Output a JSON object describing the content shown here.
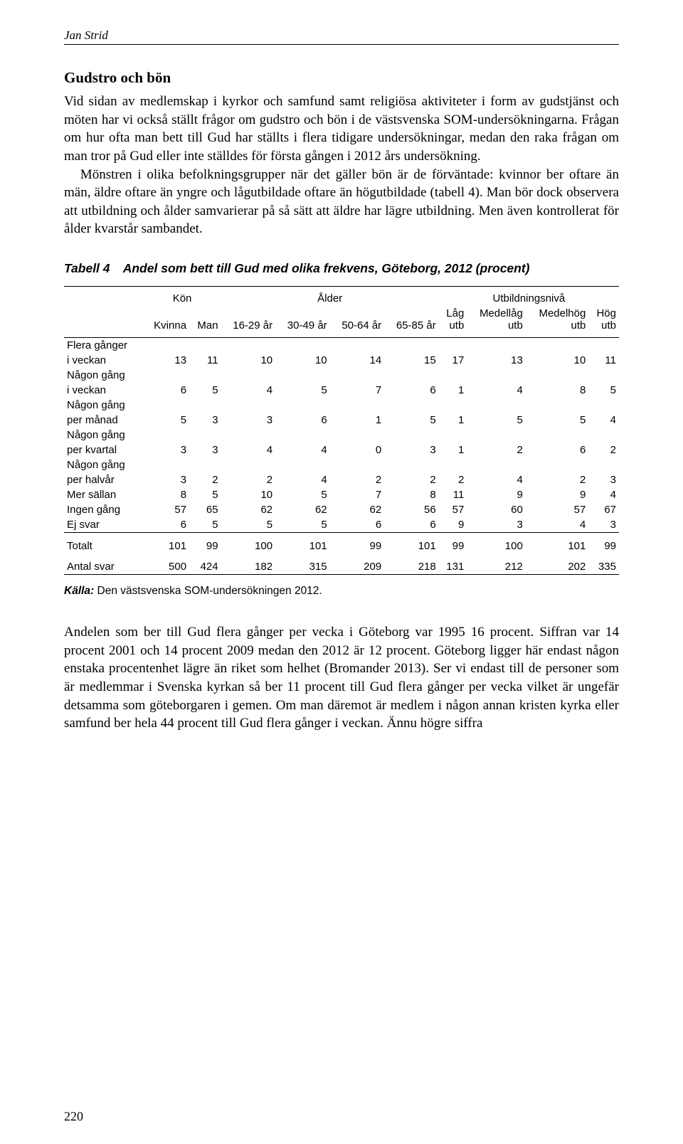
{
  "running_head": "Jan Strid",
  "heading": "Gudstro och bön",
  "para1": "Vid sidan av medlemskap i kyrkor och samfund samt religiösa aktiviteter i form av gudstjänst och möten har vi också ställt frågor om gudstro och bön i de västsvenska SOM-undersökningarna. Frågan om hur ofta man bett till Gud har ställts i flera tidigare undersökningar, medan den raka frågan om man tror på Gud eller inte ställdes för första gången i 2012 års undersökning.",
  "para2": "Mönstren i olika befolkningsgrupper när det gäller bön är de förväntade: kvinnor ber oftare än män, äldre oftare än yngre och lågutbildade oftare än högutbildade (tabell 4). Man bör dock observera att utbildning och ålder samvarierar på så sätt att äldre har lägre utbildning. Men även kontrollerat för ålder kvarstår sambandet.",
  "table": {
    "label": "Tabell 4",
    "title": "Andel som bett till Gud med olika frekvens, Göteborg, 2012 (procent)",
    "group_headers": {
      "g1": "Kön",
      "g2": "Ålder",
      "g3": "Utbildningsnivå"
    },
    "col_headers": {
      "c1": "Kvinna",
      "c2": "Man",
      "c3": "16-29 år",
      "c4": "30-49 år",
      "c5": "50-64 år",
      "c6": "65-85 år",
      "c7": "Låg utb",
      "c8": "Medellåg utb",
      "c9": "Medelhög utb",
      "c10": "Hög utb"
    },
    "rows": [
      {
        "label_a": "Flera gånger",
        "label_b": "i veckan",
        "vals": [
          "13",
          "11",
          "10",
          "10",
          "14",
          "15",
          "17",
          "13",
          "10",
          "11"
        ]
      },
      {
        "label_a": "Någon gång",
        "label_b": "i veckan",
        "vals": [
          "6",
          "5",
          "4",
          "5",
          "7",
          "6",
          "1",
          "4",
          "8",
          "5"
        ]
      },
      {
        "label_a": "Någon gång",
        "label_b": "per månad",
        "vals": [
          "5",
          "3",
          "3",
          "6",
          "1",
          "5",
          "1",
          "5",
          "5",
          "4"
        ]
      },
      {
        "label_a": "Någon gång",
        "label_b": "per kvartal",
        "vals": [
          "3",
          "3",
          "4",
          "4",
          "0",
          "3",
          "1",
          "2",
          "6",
          "2"
        ]
      },
      {
        "label_a": "Någon gång",
        "label_b": "per halvår",
        "vals": [
          "3",
          "2",
          "2",
          "4",
          "2",
          "2",
          "2",
          "4",
          "2",
          "3"
        ]
      },
      {
        "label_a": "Mer sällan",
        "label_b": "",
        "vals": [
          "8",
          "5",
          "10",
          "5",
          "7",
          "8",
          "11",
          "9",
          "9",
          "4"
        ]
      },
      {
        "label_a": "Ingen gång",
        "label_b": "",
        "vals": [
          "57",
          "65",
          "62",
          "62",
          "62",
          "56",
          "57",
          "60",
          "57",
          "67"
        ]
      },
      {
        "label_a": "Ej svar",
        "label_b": "",
        "vals": [
          "6",
          "5",
          "5",
          "5",
          "6",
          "6",
          "9",
          "3",
          "4",
          "3"
        ]
      }
    ],
    "totalt": {
      "label": "Totalt",
      "vals": [
        "101",
        "99",
        "100",
        "101",
        "99",
        "101",
        "99",
        "100",
        "101",
        "99"
      ]
    },
    "antal": {
      "label": "Antal svar",
      "vals": [
        "500",
        "424",
        "182",
        "315",
        "209",
        "218",
        "131",
        "212",
        "202",
        "335"
      ]
    },
    "source_label": "Källa:",
    "source_text": " Den västsvenska SOM-undersökningen 2012."
  },
  "para3": "Andelen som ber till Gud flera gånger per vecka i Göteborg var 1995 16 procent. Siffran var 14 procent 2001 och 14 procent 2009 medan den 2012 är 12 procent. Göteborg ligger här endast någon enstaka procentenhet lägre än riket som helhet (Bromander 2013). Ser vi endast till de personer som är medlemmar i Svenska kyrkan så ber 11 procent till Gud flera gånger per vecka vilket är ungefär detsamma som göteborgaren i gemen. Om man däremot är medlem i någon annan kristen kyrka eller samfund ber hela 44 procent till Gud flera gånger i veckan. Ännu högre siffra",
  "page_number": "220"
}
